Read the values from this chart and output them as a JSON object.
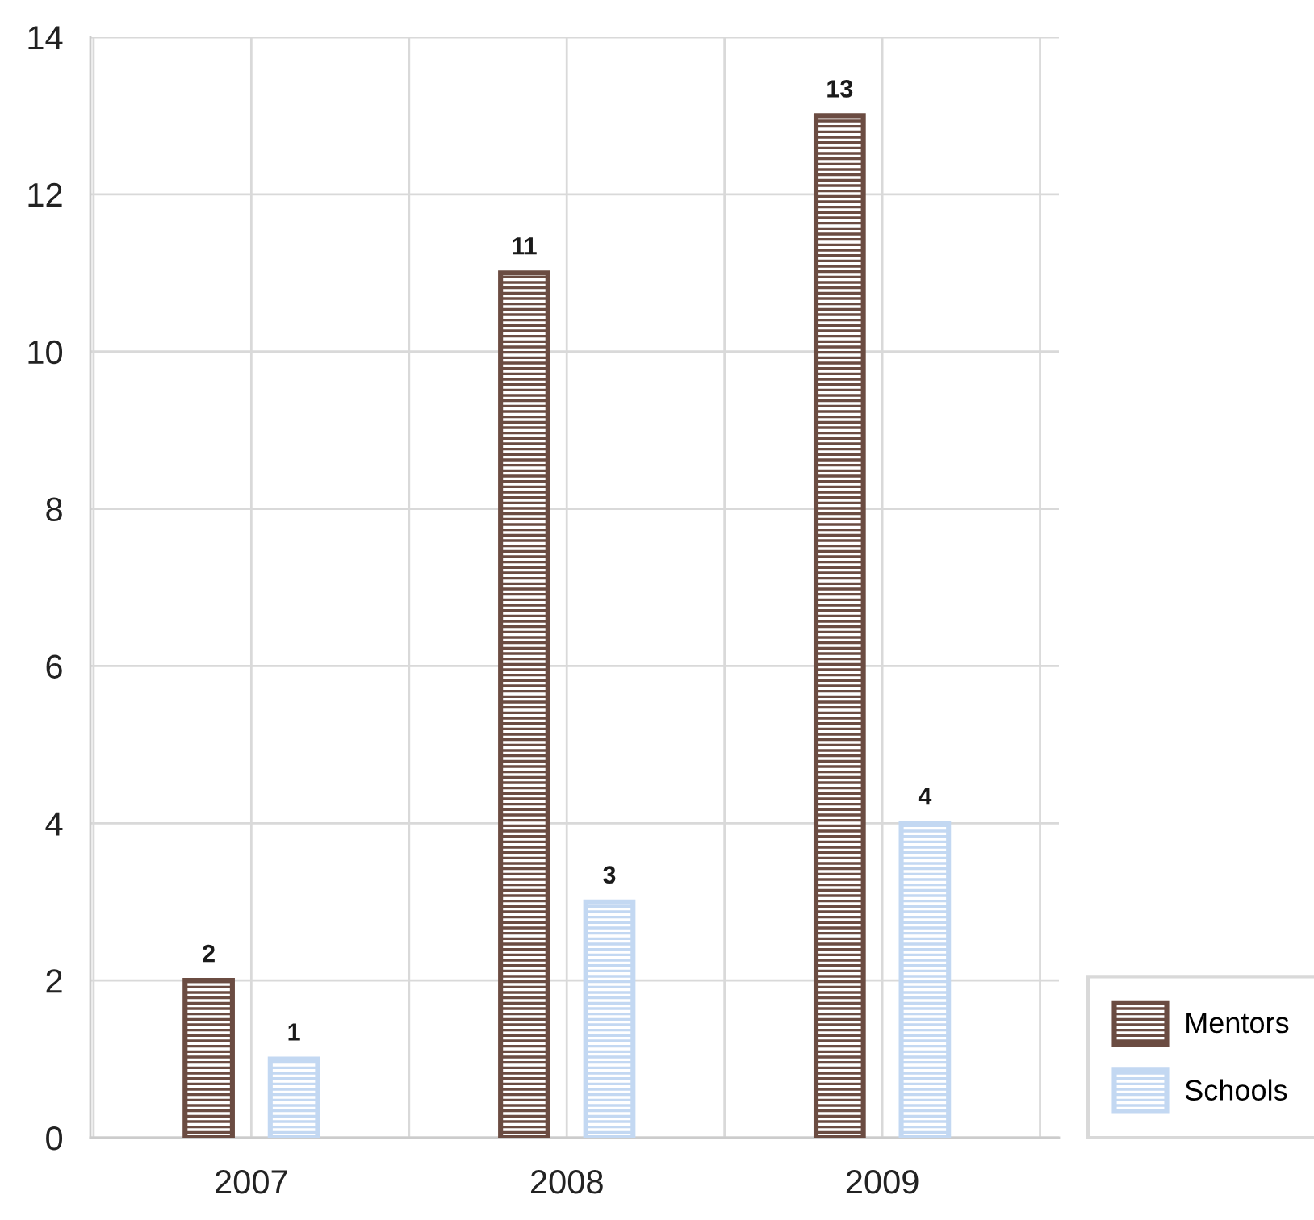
{
  "chart_data": {
    "type": "bar",
    "categories": [
      "2007",
      "2008",
      "2009"
    ],
    "series": [
      {
        "name": "Mentors",
        "color": "#6b4c42",
        "values": [
          2,
          11,
          13
        ]
      },
      {
        "name": "Schools",
        "color": "#c3d8f2",
        "values": [
          1,
          3,
          4
        ]
      }
    ],
    "ylim": [
      0,
      14
    ],
    "yticks": [
      0,
      2,
      4,
      6,
      8,
      10,
      12,
      14
    ],
    "grid": true,
    "legend": "bottom right",
    "data_labels": true
  }
}
